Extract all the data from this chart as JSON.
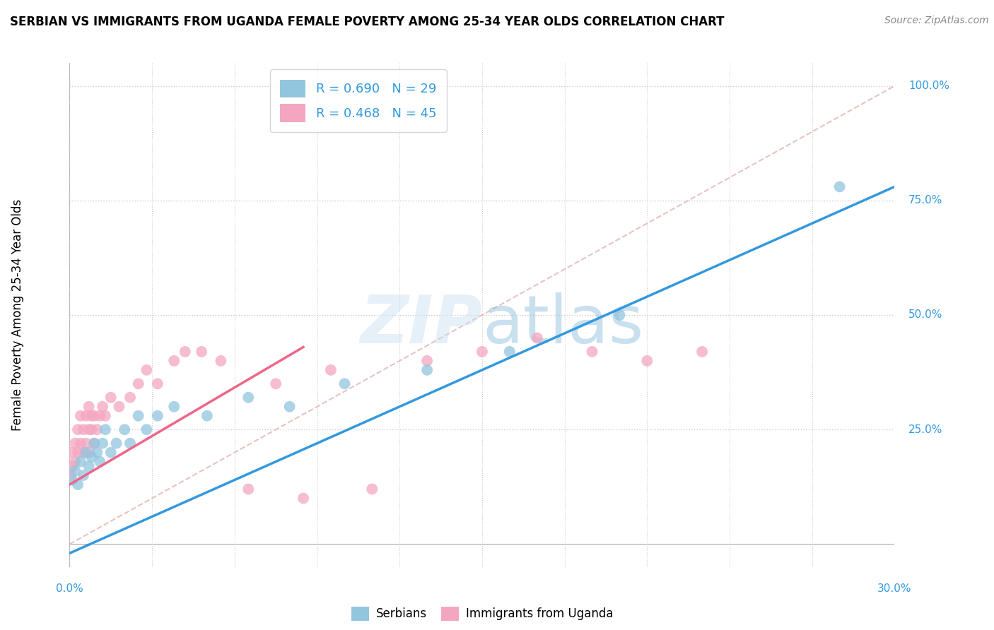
{
  "title": "SERBIAN VS IMMIGRANTS FROM UGANDA FEMALE POVERTY AMONG 25-34 YEAR OLDS CORRELATION CHART",
  "source": "Source: ZipAtlas.com",
  "ylabel": "Female Poverty Among 25-34 Year Olds",
  "legend1_label": "R = 0.690   N = 29",
  "legend2_label": "R = 0.468   N = 45",
  "legend_bottom1": "Serbians",
  "legend_bottom2": "Immigrants from Uganda",
  "serbian_color": "#92c5de",
  "uganda_color": "#f4a6c0",
  "serbian_line_color": "#3399dd",
  "uganda_line_color": "#ee6688",
  "diagonal_color": "#ddaaaa",
  "xmin": 0.0,
  "xmax": 0.3,
  "ymin": -0.05,
  "ymax": 1.05,
  "serbian_scatter_x": [
    0.001,
    0.002,
    0.003,
    0.004,
    0.005,
    0.006,
    0.007,
    0.008,
    0.009,
    0.01,
    0.011,
    0.012,
    0.013,
    0.015,
    0.017,
    0.02,
    0.022,
    0.025,
    0.028,
    0.032,
    0.038,
    0.05,
    0.065,
    0.08,
    0.1,
    0.13,
    0.16,
    0.2,
    0.28
  ],
  "serbian_scatter_y": [
    0.14,
    0.16,
    0.13,
    0.18,
    0.15,
    0.2,
    0.17,
    0.19,
    0.22,
    0.2,
    0.18,
    0.22,
    0.25,
    0.2,
    0.22,
    0.25,
    0.22,
    0.28,
    0.25,
    0.28,
    0.3,
    0.28,
    0.32,
    0.3,
    0.35,
    0.38,
    0.42,
    0.5,
    0.78
  ],
  "uganda_scatter_x": [
    0.0005,
    0.001,
    0.001,
    0.002,
    0.002,
    0.003,
    0.003,
    0.004,
    0.004,
    0.005,
    0.005,
    0.006,
    0.006,
    0.007,
    0.007,
    0.007,
    0.008,
    0.008,
    0.009,
    0.009,
    0.01,
    0.011,
    0.012,
    0.013,
    0.015,
    0.018,
    0.022,
    0.025,
    0.028,
    0.032,
    0.038,
    0.042,
    0.048,
    0.055,
    0.065,
    0.075,
    0.085,
    0.095,
    0.11,
    0.13,
    0.15,
    0.17,
    0.19,
    0.21,
    0.23
  ],
  "uganda_scatter_y": [
    0.15,
    0.17,
    0.2,
    0.18,
    0.22,
    0.2,
    0.25,
    0.22,
    0.28,
    0.2,
    0.25,
    0.22,
    0.28,
    0.25,
    0.3,
    0.2,
    0.25,
    0.28,
    0.22,
    0.28,
    0.25,
    0.28,
    0.3,
    0.28,
    0.32,
    0.3,
    0.32,
    0.35,
    0.38,
    0.35,
    0.4,
    0.42,
    0.42,
    0.4,
    0.12,
    0.35,
    0.1,
    0.38,
    0.12,
    0.4,
    0.42,
    0.45,
    0.42,
    0.4,
    0.42
  ],
  "serbian_line_x": [
    0.0,
    0.3
  ],
  "serbian_line_y": [
    -0.02,
    0.78
  ],
  "uganda_line_x": [
    0.0,
    0.085
  ],
  "uganda_line_y": [
    0.13,
    0.43
  ]
}
